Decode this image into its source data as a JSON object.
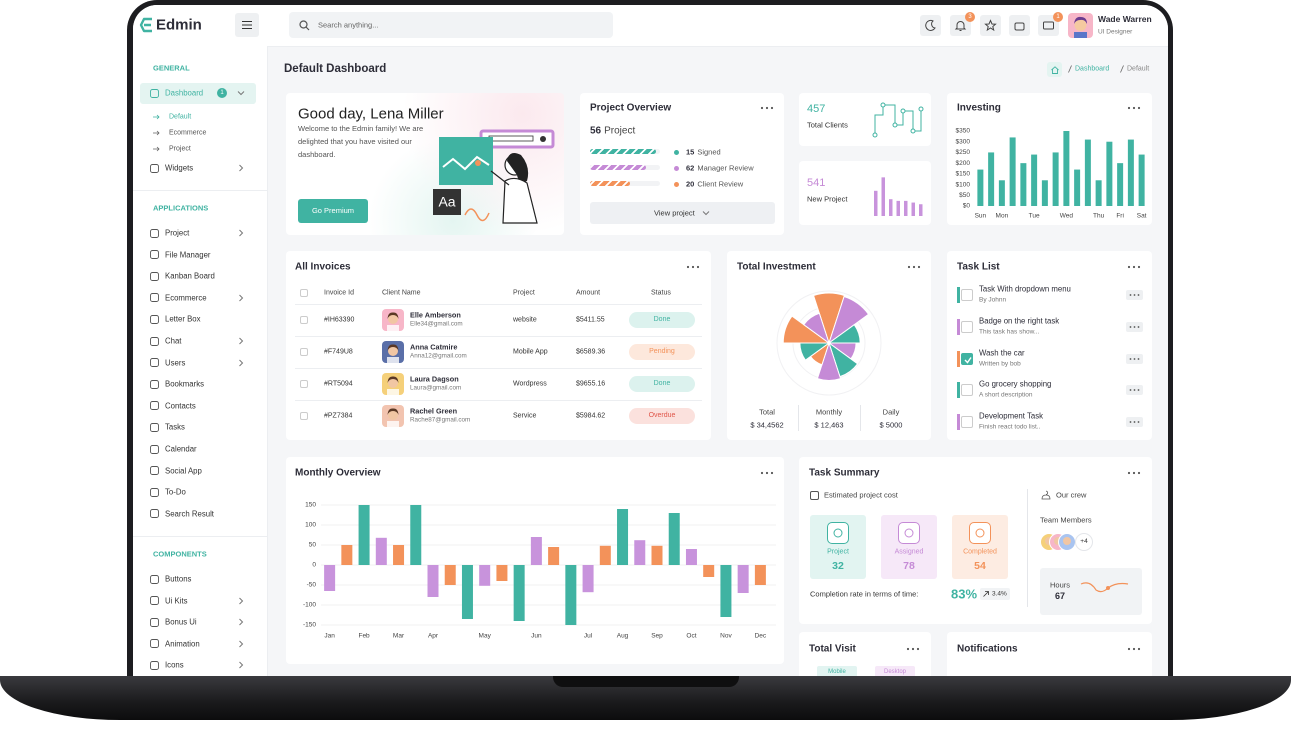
{
  "header": {
    "logo": "Edmin",
    "search_placeholder": "Search anything...",
    "notification_badge": "3",
    "message_badge": "1",
    "user_name": "Wade Warren",
    "user_role": "UI Designer"
  },
  "sidebar": {
    "sections": [
      {
        "title": "GENERAL",
        "items": [
          {
            "label": "Dashboard",
            "badge": "1",
            "active": true,
            "expanded": true,
            "arrow": true,
            "subitems": [
              "Default",
              "Ecommerce",
              "Project"
            ]
          },
          {
            "label": "Widgets",
            "arrow": true
          }
        ]
      },
      {
        "title": "APPLICATIONS",
        "items": [
          {
            "label": "Project",
            "arrow": true
          },
          {
            "label": "File Manager"
          },
          {
            "label": "Kanban Board"
          },
          {
            "label": "Ecommerce",
            "arrow": true
          },
          {
            "label": "Letter Box"
          },
          {
            "label": "Chat",
            "arrow": true
          },
          {
            "label": "Users",
            "arrow": true
          },
          {
            "label": "Bookmarks"
          },
          {
            "label": "Contacts"
          },
          {
            "label": "Tasks"
          },
          {
            "label": "Calendar"
          },
          {
            "label": "Social App"
          },
          {
            "label": "To-Do"
          },
          {
            "label": "Search Result"
          }
        ]
      },
      {
        "title": "COMPONENTS",
        "items": [
          {
            "label": "Buttons"
          },
          {
            "label": "Ui Kits",
            "arrow": true
          },
          {
            "label": "Bonus Ui",
            "arrow": true
          },
          {
            "label": "Animation",
            "arrow": true
          },
          {
            "label": "Icons",
            "arrow": true
          }
        ]
      }
    ]
  },
  "page": {
    "title": "Default Dashboard",
    "breadcrumb": [
      "Dashboard",
      "Default"
    ]
  },
  "welcome": {
    "greeting": "Good day, Lena Miller",
    "message": "Welcome to the Edmin family! We are delighted that you have visited our dashboard.",
    "button": "Go Premium",
    "illustration_text": "Aa"
  },
  "project_overview": {
    "title": "Project Overview",
    "count": 56,
    "count_label": "Project",
    "button": "View project",
    "statuses": [
      {
        "value": 15,
        "label": "Signed",
        "color": "#40b3a2"
      },
      {
        "value": 62,
        "label": "Manager Review",
        "color": "#c58ad6"
      },
      {
        "value": 20,
        "label": "Client Review",
        "color": "#f3925a"
      }
    ]
  },
  "total_clients": {
    "value": 457,
    "label": "Total Clients",
    "color": "#40b3a2"
  },
  "new_project": {
    "value": 541,
    "label": "New Project",
    "color": "#c58ad6",
    "chart": {
      "type": "bar",
      "values": [
        30,
        46,
        20,
        18,
        18,
        16,
        14
      ],
      "ylim": [
        0,
        50
      ],
      "color": "#c893dc"
    }
  },
  "investing": {
    "title": "Investing",
    "chart": {
      "type": "bar",
      "color": "#40b3a2",
      "grid": false,
      "ylim": [
        0,
        350
      ],
      "categories": [
        "Sun",
        null,
        "Mon",
        null,
        null,
        "Tue",
        null,
        null,
        "Wed",
        null,
        null,
        "Thu",
        null,
        "Fri",
        null,
        "Sat"
      ],
      "values": [
        170,
        250,
        120,
        320,
        200,
        240,
        120,
        250,
        350,
        170,
        310,
        120,
        300,
        200,
        310,
        240
      ],
      "yticks": [
        {
          "value": 0,
          "label": "$0"
        },
        {
          "value": 50,
          "label": "$50"
        },
        {
          "value": 100,
          "label": "$100"
        },
        {
          "value": 150,
          "label": "$150"
        },
        {
          "value": 200,
          "label": "$200"
        },
        {
          "value": 250,
          "label": "$250"
        },
        {
          "value": 300,
          "label": "$300"
        },
        {
          "value": 350,
          "label": "$350"
        }
      ]
    }
  },
  "invoices": {
    "title": "All Invoices",
    "columns": [
      "Invoice Id",
      "Client Name",
      "Project",
      "Amount",
      "Status"
    ],
    "rows": [
      {
        "id": "#IH63390",
        "name": "Elle Amberson",
        "email": "Elle34@gmail.com",
        "project": "website",
        "amount": "$5411.55",
        "status": "Done",
        "status_color": "#40b3a2",
        "status_bg": "#dcf2ee"
      },
      {
        "id": "#F749U8",
        "name": "Anna Catmire",
        "email": "Anna12@gmail.com",
        "project": "Mobile App",
        "amount": "$6589.36",
        "status": "Pending",
        "status_color": "#f3925a",
        "status_bg": "#fde8dc"
      },
      {
        "id": "#RT5094",
        "name": "Laura Dagson",
        "email": "Laura@gmail.com",
        "project": "Wordpress",
        "amount": "$9655.16",
        "status": "Done",
        "status_color": "#40b3a2",
        "status_bg": "#dcf2ee"
      },
      {
        "id": "#PZ7384",
        "name": "Rachel Green",
        "email": "Rache87@gmail.com",
        "project": "Service",
        "amount": "$5984.62",
        "status": "Overdue",
        "status_color": "#e0564a",
        "status_bg": "#fbe1dd"
      }
    ]
  },
  "total_investment": {
    "title": "Total Investment",
    "chart": {
      "type": "polar",
      "rlim": [
        0,
        50
      ],
      "values": [
        48,
        47,
        30,
        26,
        34,
        36,
        22,
        28,
        44,
        30
      ],
      "colors": [
        "#f3925a",
        "#c58ad6",
        "#40b3a2",
        "#c58ad6",
        "#40b3a2",
        "#c58ad6",
        "#f3925a",
        "#40b3a2",
        "#f3925a",
        "#c58ad6"
      ]
    },
    "summary": [
      {
        "label": "Total",
        "value": "$ 34,4562"
      },
      {
        "label": "Monthly",
        "value": "$ 12,463"
      },
      {
        "label": "Daily",
        "value": "$ 5000"
      }
    ]
  },
  "task_list": {
    "title": "Task List",
    "tasks": [
      {
        "title": "Task With dropdown menu",
        "subtitle": "By Johnn",
        "color": "#40b3a2",
        "done": false
      },
      {
        "title": "Badge on the right task",
        "subtitle": "This task has show...",
        "color": "#c58ad6",
        "done": false
      },
      {
        "title": "Wash the car",
        "subtitle": "Written by bob",
        "color": "#f3925a",
        "done": true
      },
      {
        "title": "Go grocery shopping",
        "subtitle": "A short description",
        "color": "#40b3a2",
        "done": false
      },
      {
        "title": "Development Task",
        "subtitle": "Finish react todo list..",
        "color": "#c58ad6",
        "done": false
      }
    ]
  },
  "monthly_overview": {
    "title": "Monthly Overview",
    "chart": {
      "type": "bar",
      "grid": true,
      "palette": [
        "#c893dc",
        "#f3925a",
        "#40b3a2"
      ],
      "ylim": [
        -150,
        150
      ],
      "yticks": [
        150,
        100,
        50,
        0,
        -50,
        -100,
        -150
      ],
      "categories": [
        "Jan",
        null,
        "Feb",
        null,
        "Mar",
        null,
        "Apr",
        null,
        null,
        "May",
        null,
        null,
        "Jun",
        null,
        null,
        "Jul",
        null,
        "Aug",
        null,
        "Sep",
        null,
        "Oct",
        null,
        "Nov",
        null,
        "Dec"
      ],
      "values": [
        -65,
        50,
        150,
        68,
        50,
        150,
        -80,
        -50,
        -135,
        -52,
        -40,
        -140,
        70,
        45,
        -150,
        -68,
        48,
        140,
        62,
        48,
        130,
        40,
        -30,
        -130,
        -70,
        -50
      ]
    }
  },
  "task_summary": {
    "title": "Task Summary",
    "cost_label": "Estimated project cost",
    "boxes": [
      {
        "label": "Project",
        "value": 32,
        "color": "#40b3a2",
        "bg": "#e2f4f1"
      },
      {
        "label": "Assigned",
        "value": 78,
        "color": "#c58ad6",
        "bg": "#f6e8f8"
      },
      {
        "label": "Completed",
        "value": 54,
        "color": "#f3925a",
        "bg": "#fdece2"
      }
    ],
    "completion_label": "Completion rate in terms of time:",
    "completion_rate": "83%",
    "change": "3.4%",
    "crew_label": "Our crew",
    "team_label": "Team Members",
    "extra_members": "+4",
    "hours_label": "Hours",
    "hours": 67
  },
  "total_visit": {
    "title": "Total Visit",
    "tabs": [
      "Mobile",
      "Desktop"
    ]
  },
  "notifications": {
    "title": "Notifications"
  }
}
